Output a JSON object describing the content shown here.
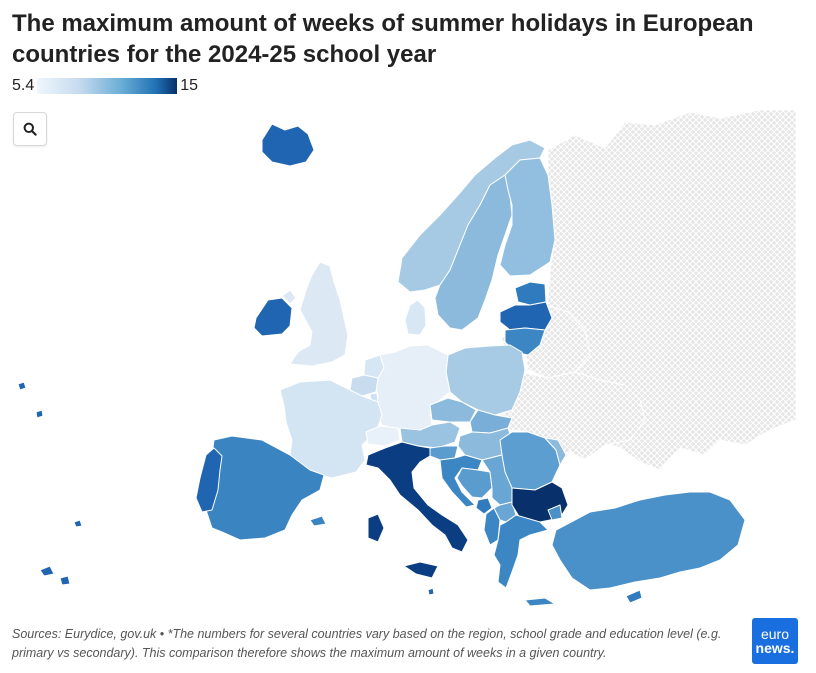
{
  "title": "The maximum amount of weeks of summer holidays in European countries for the 2024-25 school year",
  "legend": {
    "min_label": "5.4",
    "max_label": "15",
    "min_value": 5.4,
    "max_value": 15,
    "color_min": "#f0f6fc",
    "color_max": "#08306b"
  },
  "zoom_button": {
    "icon": "search-icon"
  },
  "map_data": {
    "no_data_color": "#e6e6e6",
    "regions": [
      {
        "name": "Iceland",
        "color": "#1f65b1"
      },
      {
        "name": "Ireland",
        "color": "#1f65b1"
      },
      {
        "name": "United Kingdom",
        "color": "#dce9f5"
      },
      {
        "name": "Norway",
        "color": "#a6c9e4"
      },
      {
        "name": "Sweden",
        "color": "#8bbadc"
      },
      {
        "name": "Finland",
        "color": "#92bfe0"
      },
      {
        "name": "Denmark",
        "color": "#d8e7f4"
      },
      {
        "name": "Estonia",
        "color": "#2f7bbd"
      },
      {
        "name": "Latvia",
        "color": "#1f65b1"
      },
      {
        "name": "Lithuania",
        "color": "#3d86c4"
      },
      {
        "name": "Poland",
        "color": "#a8cbe5"
      },
      {
        "name": "Germany",
        "color": "#e6eff8"
      },
      {
        "name": "Netherlands",
        "color": "#d6e6f4"
      },
      {
        "name": "Belgium",
        "color": "#c7dcef"
      },
      {
        "name": "France",
        "color": "#d3e4f3"
      },
      {
        "name": "Switzerland",
        "color": "#e8f1f9"
      },
      {
        "name": "Austria",
        "color": "#9ac3e2"
      },
      {
        "name": "Czechia",
        "color": "#8bbadc"
      },
      {
        "name": "Slovakia",
        "color": "#78aed8"
      },
      {
        "name": "Hungary",
        "color": "#8bbadc"
      },
      {
        "name": "Slovenia",
        "color": "#5b9ccf"
      },
      {
        "name": "Croatia",
        "color": "#3d86c4"
      },
      {
        "name": "Bosnia and Herzegovina",
        "color": "#5b9ccf"
      },
      {
        "name": "Serbia",
        "color": "#6aa6d4"
      },
      {
        "name": "Montenegro",
        "color": "#2f7bbd"
      },
      {
        "name": "Albania",
        "color": "#3d86c4"
      },
      {
        "name": "North Macedonia",
        "color": "#6aa6d4"
      },
      {
        "name": "Romania",
        "color": "#5d9ed0"
      },
      {
        "name": "Moldova",
        "color": "#8bbadc"
      },
      {
        "name": "Bulgaria",
        "color": "#08306b"
      },
      {
        "name": "Greece",
        "color": "#3d86c4"
      },
      {
        "name": "Cyprus",
        "color": "#2f7bbd"
      },
      {
        "name": "Turkey",
        "color": "#4a90c9"
      },
      {
        "name": "Italy",
        "color": "#0a3d82"
      },
      {
        "name": "Malta",
        "color": "#1f65b1"
      },
      {
        "name": "Spain",
        "color": "#3b84c2"
      },
      {
        "name": "Portugal",
        "color": "#1f65b1"
      },
      {
        "name": "Luxembourg",
        "color": "#cfe1f2"
      },
      {
        "name": "Liechtenstein",
        "color": "#cfe1f2"
      }
    ],
    "no_data_regions": [
      "Russia",
      "Belarus",
      "Ukraine"
    ]
  },
  "footer": {
    "text": "Sources: Eurydice, gov.uk • *The numbers for several countries vary based on the region, school grade and education level (e.g. primary vs secondary). This comparison therefore shows the maximum amount of weeks in a given country."
  },
  "logo": {
    "line1": "euro",
    "line2": "news."
  }
}
